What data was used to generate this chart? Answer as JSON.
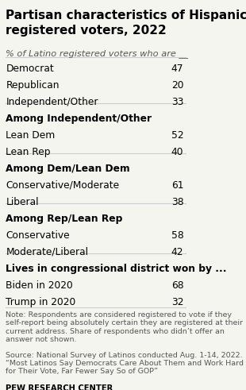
{
  "title": "Partisan characteristics of Hispanic\nregistered voters, 2022",
  "subtitle": "% of Latino registered voters who are __",
  "rows": [
    {
      "label": "Democrat",
      "value": "47",
      "bold_label": false
    },
    {
      "label": "Republican",
      "value": "20",
      "bold_label": false
    },
    {
      "label": "Independent/Other",
      "value": "33",
      "bold_label": false
    },
    {
      "label": "Among Independent/Other",
      "value": "",
      "bold_label": true
    },
    {
      "label": "Lean Dem",
      "value": "52",
      "bold_label": false
    },
    {
      "label": "Lean Rep",
      "value": "40",
      "bold_label": false
    },
    {
      "label": "Among Dem/Lean Dem",
      "value": "",
      "bold_label": true
    },
    {
      "label": "Conservative/Moderate",
      "value": "61",
      "bold_label": false
    },
    {
      "label": "Liberal",
      "value": "38",
      "bold_label": false
    },
    {
      "label": "Among Rep/Lean Rep",
      "value": "",
      "bold_label": true
    },
    {
      "label": "Conservative",
      "value": "58",
      "bold_label": false
    },
    {
      "label": "Moderate/Liberal",
      "value": "42",
      "bold_label": false
    },
    {
      "label": "Lives in congressional district won by ...",
      "value": "",
      "bold_label": true
    },
    {
      "label": "Biden in 2020",
      "value": "68",
      "bold_label": false
    },
    {
      "label": "Trump in 2020",
      "value": "32",
      "bold_label": false
    }
  ],
  "note": "Note: Respondents are considered registered to vote if they self-report being absolutely certain they are registered at their current address. Share of respondents who didn’t offer an answer not shown.",
  "source": "Source: National Survey of Latinos conducted Aug. 1-14, 2022.\n“Most Latinos Say Democrats Care About Them and Work Hard for Their Vote, Far Fewer Say So of GOP”",
  "footer": "PEW RESEARCH CENTER",
  "bg_color": "#f5f5f0",
  "title_color": "#000000",
  "subtitle_color": "#555555",
  "label_color": "#000000",
  "note_color": "#555555",
  "footer_color": "#000000",
  "separator_color": "#cccccc",
  "title_fontsize": 11.0,
  "subtitle_fontsize": 8.2,
  "label_fontsize": 8.8,
  "note_fontsize": 6.8,
  "footer_fontsize": 7.2
}
